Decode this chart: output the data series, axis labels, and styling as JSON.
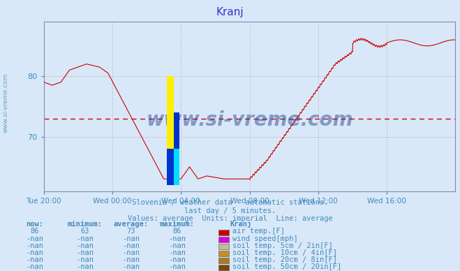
{
  "title": "Kranj",
  "title_color": "#3333cc",
  "bg_color": "#d8e8f8",
  "plot_bg_color": "#d8e8f8",
  "line_color": "#cc0000",
  "avg_line_color": "#cc0000",
  "grid_color": "#d0a0a0",
  "ylabel_color": "#4488bb",
  "xlabel_color": "#4488bb",
  "text_color": "#4488bb",
  "watermark_color": "#1a3a8a",
  "sidebar_color": "#5599bb",
  "y_min": 61,
  "y_max": 89,
  "ytick_positions": [
    70,
    80
  ],
  "ytick_labels": [
    "70",
    "80"
  ],
  "avg_value": 73,
  "xtick_positions": [
    0,
    240,
    480,
    720,
    960,
    1200
  ],
  "xtick_labels": [
    "Tue 20:00",
    "Wed 00:00",
    "Wed 04:00",
    "Wed 08:00",
    "Wed 12:00",
    "Wed 16:00"
  ],
  "subtitle1": "Slovenia / weather data - automatic stations.",
  "subtitle2": "last day / 5 minutes.",
  "subtitle3": "Values: average  Units: imperial  Line: average",
  "legend_items": [
    {
      "label": "air temp.[F]",
      "color": "#cc0000"
    },
    {
      "label": "wind speed[mph]",
      "color": "#dd00dd"
    },
    {
      "label": "soil temp. 5cm / 2in[F]",
      "color": "#c8b898"
    },
    {
      "label": "soil temp. 10cm / 4in[F]",
      "color": "#c09020"
    },
    {
      "label": "soil temp. 20cm / 8in[F]",
      "color": "#b07820"
    },
    {
      "label": "soil temp. 50cm / 20in[F]",
      "color": "#7b4800"
    }
  ],
  "stats_header": [
    "now:",
    "minimum:",
    "average:",
    "maximum:",
    "Kranj"
  ],
  "stats_row1": [
    "86",
    "63",
    "73",
    "86"
  ],
  "stats_other": [
    "-nan",
    "-nan",
    "-nan",
    "-nan"
  ]
}
